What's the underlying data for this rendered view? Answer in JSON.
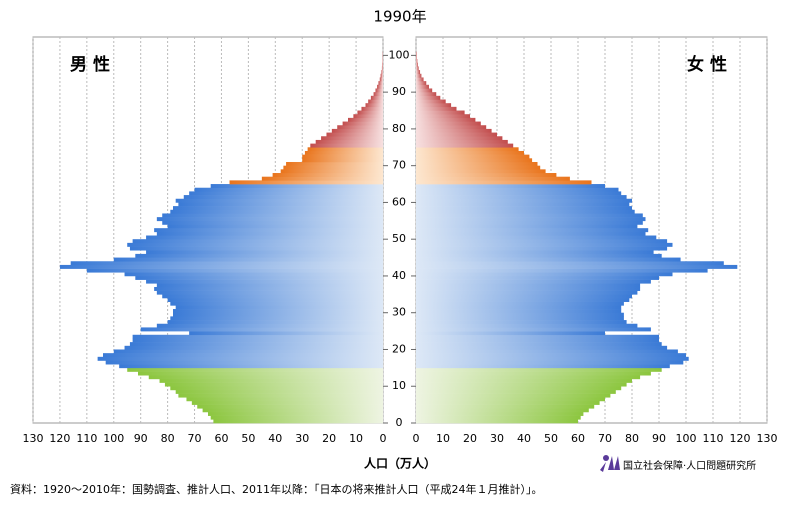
{
  "chart_data": {
    "type": "pyramid",
    "title": "1990年",
    "x_label": "人口（万人）",
    "source": "資料：1920～2010年：国勢調査、推計人口、2011年以降：「日本の将来推計人口（平成24年１月推計）」。",
    "organization": "国立社会保障·人口問題研究所",
    "ages": [
      0,
      1,
      2,
      3,
      4,
      5,
      6,
      7,
      8,
      9,
      10,
      11,
      12,
      13,
      14,
      15,
      16,
      17,
      18,
      19,
      20,
      21,
      22,
      23,
      24,
      25,
      26,
      27,
      28,
      29,
      30,
      31,
      32,
      33,
      34,
      35,
      36,
      37,
      38,
      39,
      40,
      41,
      42,
      43,
      44,
      45,
      46,
      47,
      48,
      49,
      50,
      51,
      52,
      53,
      54,
      55,
      56,
      57,
      58,
      59,
      60,
      61,
      62,
      63,
      64,
      65,
      66,
      67,
      68,
      69,
      70,
      71,
      72,
      73,
      74,
      75,
      76,
      77,
      78,
      79,
      80,
      81,
      82,
      83,
      84,
      85,
      86,
      87,
      88,
      89,
      90,
      91,
      92,
      93,
      94,
      95,
      96,
      97,
      98,
      99,
      100
    ],
    "series": [
      {
        "name": "男 性",
        "side": "left",
        "values": [
          63,
          64,
          65,
          67,
          69,
          71,
          73,
          76,
          77,
          79,
          81,
          83,
          87,
          91,
          95,
          98,
          103,
          106,
          104,
          100,
          96,
          94,
          93,
          93,
          72,
          90,
          84,
          80,
          79,
          78,
          78,
          77,
          79,
          80,
          82,
          84,
          85,
          84,
          88,
          92,
          96,
          110,
          120,
          116,
          100,
          92,
          88,
          94,
          95,
          93,
          88,
          84,
          85,
          80,
          82,
          84,
          82,
          79,
          78,
          76,
          77,
          74,
          72,
          70,
          64,
          57,
          45,
          41,
          38,
          37,
          36,
          30,
          30,
          29,
          28,
          27,
          25,
          23,
          21,
          19,
          17,
          15,
          13,
          11,
          9.5,
          8,
          6.5,
          5.5,
          4.5,
          3.5,
          2.8,
          2.2,
          1.7,
          1.2,
          0.9,
          0.6,
          0.4,
          0.3,
          0.2,
          0.1,
          0.1
        ]
      },
      {
        "name": "女 性",
        "side": "right",
        "values": [
          60,
          61,
          62,
          64,
          66,
          68,
          70,
          72,
          74,
          76,
          78,
          80,
          83,
          87,
          91,
          94,
          99,
          101,
          100,
          97,
          93,
          91,
          90,
          90,
          70,
          87,
          82,
          78,
          77,
          77,
          76,
          76,
          77,
          79,
          80,
          82,
          83,
          83,
          87,
          90,
          95,
          108,
          119,
          114,
          98,
          91,
          88,
          93,
          95,
          93,
          89,
          85,
          86,
          82,
          84,
          85,
          84,
          81,
          80,
          79,
          80,
          78,
          76,
          75,
          70,
          65,
          57,
          52,
          48,
          46,
          45,
          43,
          42,
          40,
          38,
          36,
          34,
          32,
          30,
          28,
          26,
          24,
          22,
          20,
          18,
          15,
          13,
          11,
          9,
          7.5,
          6,
          4.8,
          3.8,
          2.8,
          2,
          1.5,
          1,
          0.7,
          0.5,
          0.3,
          0.3
        ]
      }
    ],
    "color_bands": [
      {
        "from": 0,
        "color": "#8cc63f",
        "pale": "#eef4e2"
      },
      {
        "from": 15,
        "color": "#3a7ad6",
        "pale": "#dde8f6"
      },
      {
        "from": 65,
        "color": "#e9741c",
        "pale": "#fde7d0"
      },
      {
        "from": 75,
        "color": "#c24d4d",
        "pale": "#f7e0e0"
      }
    ],
    "xlim": [
      0,
      130
    ],
    "xticks": [
      0,
      10,
      20,
      30,
      40,
      50,
      60,
      70,
      80,
      90,
      100,
      110,
      120,
      130
    ],
    "ylim": [
      0,
      105
    ],
    "yticks": [
      0,
      10,
      20,
      30,
      40,
      50,
      60,
      70,
      80,
      90,
      100
    ],
    "grid": true
  }
}
